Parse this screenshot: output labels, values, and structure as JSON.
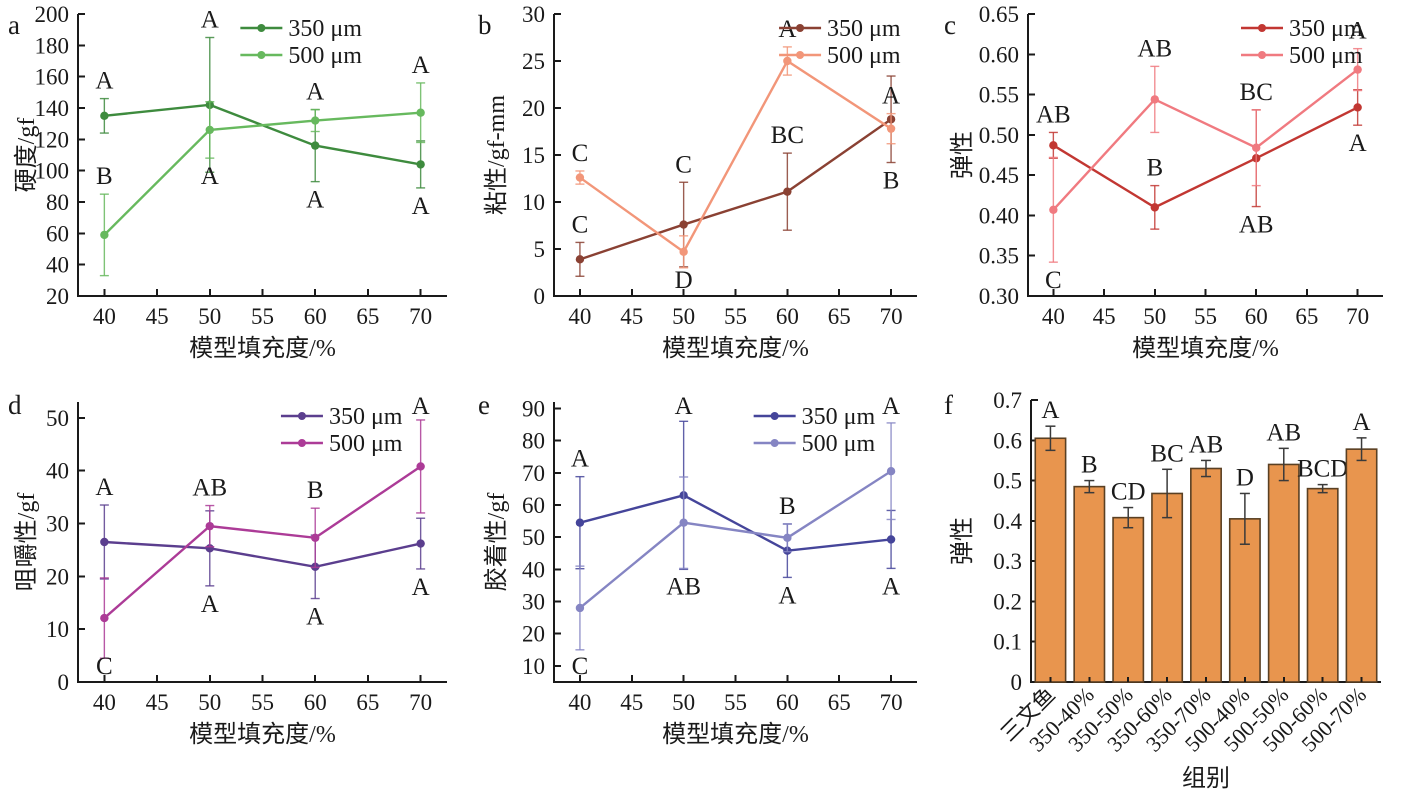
{
  "figure": {
    "background": "#ffffff",
    "axis_color": "#1a1a1a",
    "sig_label_color": "#1a1a1a"
  },
  "chart_data": [
    {
      "panel": "a",
      "type": "line",
      "ylabel": "硬度/gf",
      "xlabel": "模型填充度/%",
      "x": [
        40,
        50,
        60,
        70
      ],
      "xlim": [
        37.5,
        72.5
      ],
      "xticks": [
        40,
        45,
        50,
        55,
        60,
        65,
        70
      ],
      "ylim": [
        20,
        200
      ],
      "yticks": [
        20,
        40,
        60,
        80,
        100,
        120,
        140,
        160,
        180,
        200
      ],
      "ydecimals": 0,
      "legend_position": "upper-right-inside",
      "legend_x": 0.44,
      "series": [
        {
          "name": "350 μm",
          "color": "#3e8b3e",
          "values": [
            135,
            142,
            116,
            104
          ],
          "err": [
            11,
            43,
            23,
            15
          ],
          "sig": [
            "A",
            "A",
            "A",
            "A"
          ],
          "sig_pos": [
            "above",
            "above",
            "below",
            "below"
          ]
        },
        {
          "name": "500 μm",
          "color": "#67b95e",
          "values": [
            59,
            126,
            132,
            137
          ],
          "err": [
            26,
            18,
            7,
            19
          ],
          "sig": [
            "B",
            "A",
            "A",
            "A"
          ],
          "sig_pos": [
            "above",
            "below",
            "above",
            "above"
          ]
        }
      ]
    },
    {
      "panel": "b",
      "type": "line",
      "ylabel": "粘性/gf-mm",
      "xlabel": "模型填充度/%",
      "x": [
        40,
        50,
        60,
        70
      ],
      "xlim": [
        37.5,
        72.5
      ],
      "xticks": [
        40,
        45,
        50,
        55,
        60,
        65,
        70
      ],
      "ylim": [
        0,
        30
      ],
      "yticks": [
        0,
        5,
        10,
        15,
        20,
        25,
        30
      ],
      "ydecimals": 0,
      "legend_position": "upper-right-inside",
      "legend_x": 0.62,
      "series": [
        {
          "name": "350 μm",
          "color": "#8a4133",
          "values": [
            3.9,
            7.6,
            11.1,
            18.8
          ],
          "err": [
            1.8,
            4.5,
            4.1,
            4.6
          ],
          "sig": [
            "C",
            "C",
            "BC",
            "B"
          ],
          "sig_pos": [
            "above",
            "above",
            "above",
            "below"
          ]
        },
        {
          "name": "500 μm",
          "color": "#f29679",
          "values": [
            12.6,
            4.7,
            25.0,
            17.8
          ],
          "err": [
            0.7,
            1.7,
            1.5,
            1.6
          ],
          "sig": [
            "C",
            "D",
            "A",
            "A"
          ],
          "sig_pos": [
            "above",
            "below",
            "above",
            "above"
          ]
        }
      ]
    },
    {
      "panel": "c",
      "type": "line",
      "ylabel": "弹性",
      "xlabel": "模型填充度/%",
      "x": [
        40,
        50,
        60,
        70
      ],
      "xlim": [
        37.5,
        72.5
      ],
      "xticks": [
        40,
        45,
        50,
        55,
        60,
        65,
        70
      ],
      "ylim": [
        0.3,
        0.65
      ],
      "yticks": [
        0.3,
        0.35,
        0.4,
        0.45,
        0.5,
        0.55,
        0.6,
        0.65
      ],
      "ydecimals": 2,
      "legend_position": "upper-right-inside",
      "legend_x": 0.6,
      "series": [
        {
          "name": "350 μm",
          "color": "#c23732",
          "values": [
            0.487,
            0.41,
            0.471,
            0.534
          ],
          "err": [
            0.016,
            0.027,
            0.06,
            0.022
          ],
          "sig": [
            "AB",
            "B",
            "AB",
            "A"
          ],
          "sig_pos": [
            "above",
            "above",
            "below",
            "below"
          ]
        },
        {
          "name": "500 μm",
          "color": "#f07a80",
          "values": [
            0.407,
            0.544,
            0.484,
            0.581
          ],
          "err": [
            0.065,
            0.041,
            0.047,
            0.026
          ],
          "sig": [
            "C",
            "AB",
            "BC",
            "A"
          ],
          "sig_pos": [
            "below",
            "above",
            "above",
            "above"
          ]
        }
      ]
    },
    {
      "panel": "d",
      "type": "line",
      "ylabel": "咀嚼性/gf",
      "xlabel": "模型填充度/%",
      "x": [
        40,
        50,
        60,
        70
      ],
      "xlim": [
        37.5,
        72.5
      ],
      "xticks": [
        40,
        45,
        50,
        55,
        60,
        65,
        70
      ],
      "ylim": [
        0,
        53
      ],
      "yticks": [
        0,
        10,
        20,
        30,
        40,
        50
      ],
      "ydecimals": 0,
      "legend_position": "upper-right-inside",
      "legend_x": 0.55,
      "series": [
        {
          "name": "350 μm",
          "color": "#5b3e8e",
          "values": [
            26.5,
            25.3,
            21.8,
            26.2
          ],
          "err": [
            7.0,
            7.1,
            6.0,
            4.8
          ],
          "sig": [
            "A",
            "A",
            "A",
            "A"
          ],
          "sig_pos": [
            "above",
            "below",
            "below",
            "below"
          ]
        },
        {
          "name": "500 μm",
          "color": "#ac3b97",
          "values": [
            12.1,
            29.5,
            27.3,
            40.8
          ],
          "err": [
            7.6,
            3.9,
            5.6,
            8.8
          ],
          "sig": [
            "C",
            "AB",
            "B",
            "A"
          ],
          "sig_pos": [
            "below",
            "above",
            "above",
            "above"
          ]
        }
      ]
    },
    {
      "panel": "e",
      "type": "line",
      "ylabel": "胶着性/gf",
      "xlabel": "模型填充度/%",
      "x": [
        40,
        50,
        60,
        70
      ],
      "xlim": [
        37.5,
        72.5
      ],
      "xticks": [
        40,
        45,
        50,
        55,
        60,
        65,
        70
      ],
      "ylim": [
        5,
        92
      ],
      "yticks": [
        10,
        20,
        30,
        40,
        50,
        60,
        70,
        80,
        90
      ],
      "ydecimals": 0,
      "legend_position": "upper-right-inside",
      "legend_x": 0.55,
      "series": [
        {
          "name": "350 μm",
          "color": "#45459a",
          "values": [
            54.5,
            63.0,
            45.8,
            49.3
          ],
          "err": [
            14.3,
            23.0,
            8.3,
            9.0
          ],
          "sig": [
            "A",
            "A",
            "A",
            "A"
          ],
          "sig_pos": [
            "above",
            "above",
            "below",
            "below"
          ]
        },
        {
          "name": "500 μm",
          "color": "#8585c3",
          "values": [
            28.0,
            54.5,
            49.8,
            70.5
          ],
          "err": [
            13.0,
            14.2,
            4.3,
            15.0
          ],
          "sig": [
            "C",
            "AB",
            "B",
            "A"
          ],
          "sig_pos": [
            "below",
            "below",
            "above",
            "above"
          ]
        }
      ]
    },
    {
      "panel": "f",
      "type": "bar",
      "ylabel": "弹性",
      "xlabel": "组别",
      "categories": [
        "三文鱼",
        "350-40%",
        "350-50%",
        "350-60%",
        "350-70%",
        "500-40%",
        "500-50%",
        "500-60%",
        "500-70%"
      ],
      "values": [
        0.605,
        0.485,
        0.408,
        0.468,
        0.53,
        0.405,
        0.54,
        0.48,
        0.578
      ],
      "err": [
        0.03,
        0.015,
        0.025,
        0.06,
        0.02,
        0.063,
        0.04,
        0.01,
        0.028
      ],
      "sig": [
        "A",
        "B",
        "CD",
        "BC",
        "AB",
        "D",
        "AB",
        "BCD",
        "A"
      ],
      "ylim": [
        0,
        0.7
      ],
      "yticks": [
        0,
        0.1,
        0.2,
        0.3,
        0.4,
        0.5,
        0.6,
        0.7
      ],
      "ydecimals": 1,
      "bar_color": "#e8954e",
      "bar_stroke": "#5a4023",
      "errorbar_color": "#3a3a3a"
    }
  ]
}
